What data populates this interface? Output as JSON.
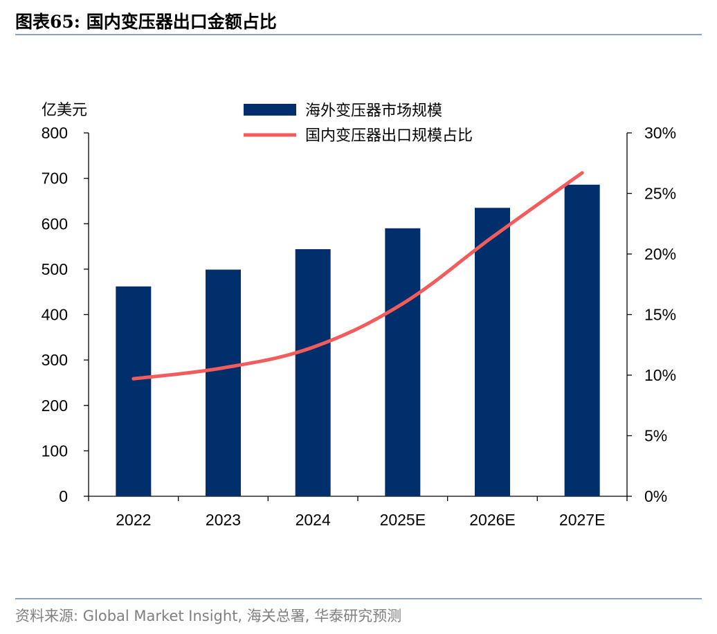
{
  "figure": {
    "title": "图表65:  国内变压器出口金额占比",
    "source": "资料来源: Global Market Insight, 海关总署, 华泰研究预测"
  },
  "chart_data": {
    "type": "bar",
    "title": "",
    "categories": [
      "2022",
      "2023",
      "2024",
      "2025E",
      "2026E",
      "2027E"
    ],
    "left_axis": {
      "unit_label": "亿美元",
      "min": 0,
      "max": 800,
      "step": 100,
      "tick_labels": [
        "0",
        "100",
        "200",
        "300",
        "400",
        "500",
        "600",
        "700",
        "800"
      ]
    },
    "right_axis": {
      "min": 0,
      "max": 30,
      "step": 5,
      "tick_labels": [
        "0%",
        "5%",
        "10%",
        "15%",
        "20%",
        "25%",
        "30%"
      ]
    },
    "series": [
      {
        "name": "海外变压器市场规模",
        "type": "bar",
        "axis": "left",
        "color": "#002f6c",
        "values": [
          462,
          499,
          544,
          590,
          635,
          686
        ]
      },
      {
        "name": "国内变压器出口规模占比",
        "type": "line",
        "axis": "right",
        "color": "#f25c5c",
        "values": [
          9.7,
          10.6,
          12.3,
          15.9,
          21.4,
          26.7
        ]
      }
    ],
    "legend_position": "top-center",
    "grid": false
  }
}
